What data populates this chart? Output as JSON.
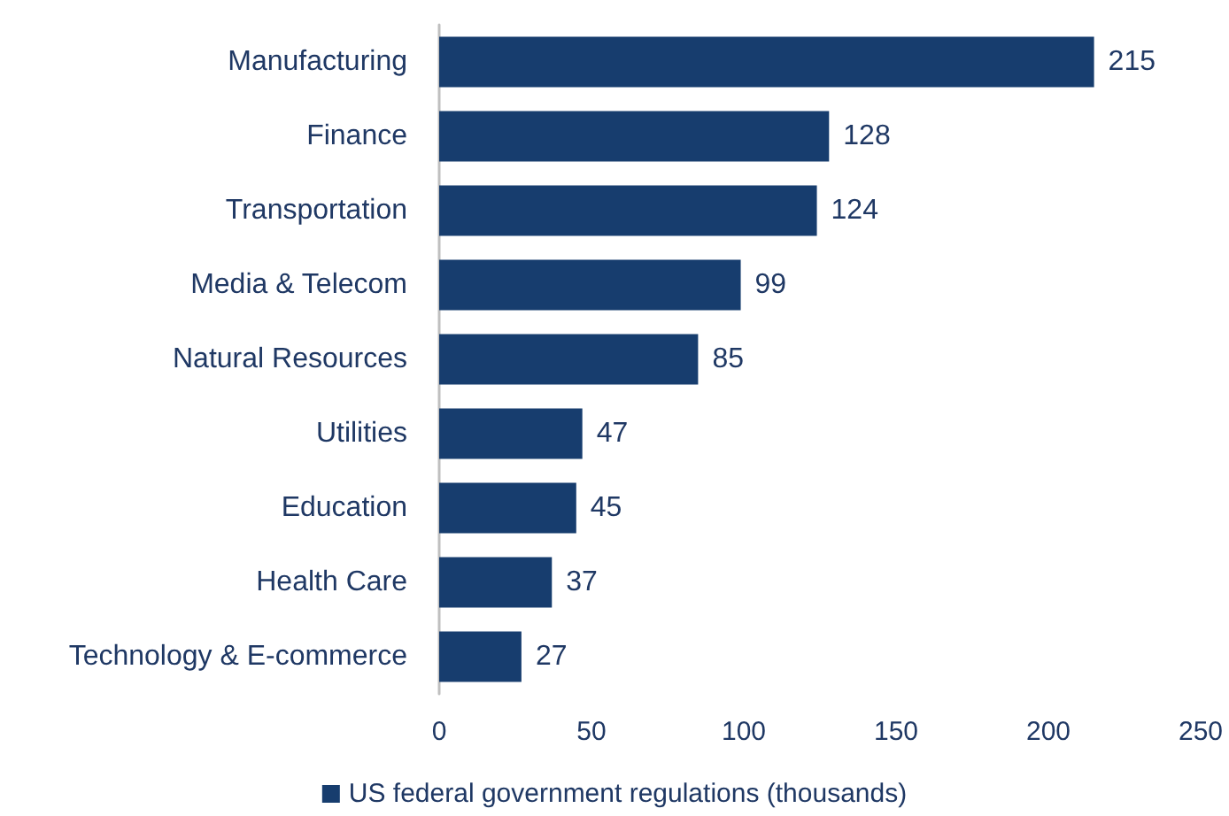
{
  "chart_data": {
    "type": "bar",
    "orientation": "horizontal",
    "categories": [
      "Manufacturing",
      "Finance",
      "Transportation",
      "Media & Telecom",
      "Natural Resources",
      "Utilities",
      "Education",
      "Health Care",
      "Technology & E-commerce"
    ],
    "series": [
      {
        "name": "US federal government regulations (thousands)",
        "color": "#173d6e",
        "values": [
          215,
          128,
          124,
          99,
          85,
          47,
          45,
          37,
          27
        ]
      }
    ],
    "xlim": [
      0,
      250
    ],
    "xticks": [
      0,
      50,
      100,
      150,
      200,
      250
    ],
    "data_labels": true,
    "grid": false,
    "legend": "bottom"
  }
}
